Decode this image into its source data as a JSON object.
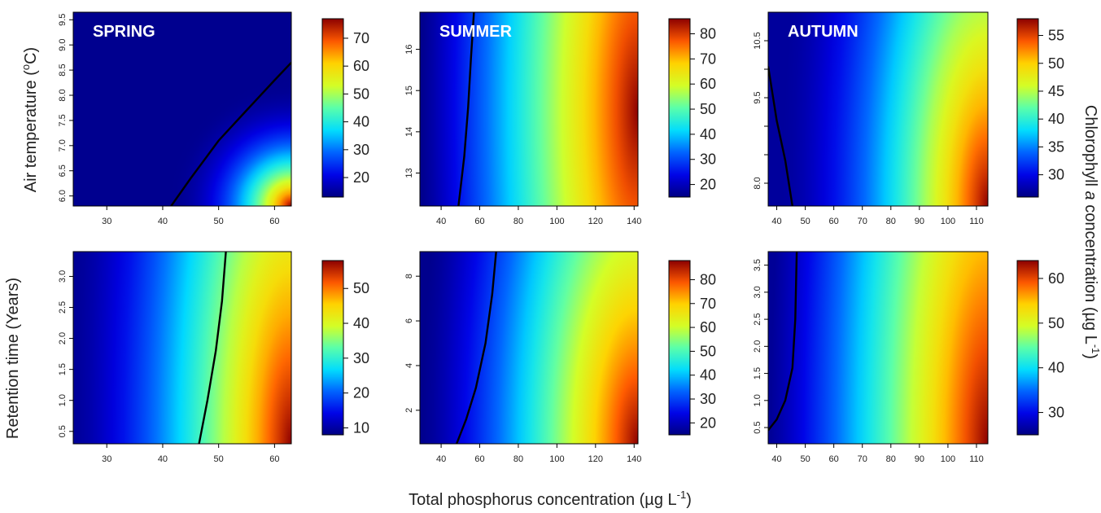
{
  "figure": {
    "xlabel": "Total phosphorus concentration (µg L",
    "xlabel_sup": "-1",
    "xlabel_end": ")",
    "ylabel_top": "Air temperature (",
    "ylabel_top_sup": "o",
    "ylabel_top_end": "C)",
    "ylabel_bottom": "Retention time (Years)",
    "clabel_a": "Chlorophyll ",
    "clabel_italic": "a",
    "clabel_b": " concentration (µg L",
    "clabel_sup": "-1",
    "clabel_end": ")"
  },
  "chart_data": [
    {
      "type": "heatmap",
      "row": 0,
      "col": 0,
      "season": "SPRING",
      "xticks": [
        30,
        40,
        50,
        60
      ],
      "xlim": [
        24,
        63
      ],
      "yticks": [
        6.0,
        6.5,
        7.0,
        7.5,
        8.0,
        8.5,
        9.0,
        9.5
      ],
      "ylim": [
        5.8,
        9.65
      ],
      "ytick_labels": [
        "6.0",
        "6.5",
        "7.0",
        "7.5",
        "8.0",
        "8.5",
        "9.0",
        "9.5"
      ],
      "colorbar": {
        "ticks": [
          20,
          30,
          40,
          50,
          60,
          70
        ],
        "range": [
          13,
          77
        ]
      },
      "surface": {
        "base": 14,
        "low": 13,
        "high": 77,
        "cx": 63,
        "cy": 5.8,
        "rx": 22,
        "ry": 2.5,
        "power": 2.2
      },
      "contour": [
        [
          41.5,
          5.8
        ],
        [
          45,
          6.35
        ],
        [
          50,
          7.1
        ],
        [
          55,
          7.7
        ],
        [
          60,
          8.3
        ],
        [
          63,
          8.65
        ]
      ]
    },
    {
      "type": "heatmap",
      "row": 0,
      "col": 1,
      "season": "SUMMER",
      "xticks": [
        40,
        60,
        80,
        100,
        120,
        140
      ],
      "xlim": [
        29,
        142
      ],
      "yticks": [
        13,
        14,
        15,
        16
      ],
      "ylim": [
        12.2,
        16.9
      ],
      "ytick_labels": [
        "13",
        "14",
        "15",
        "16"
      ],
      "colorbar": {
        "ticks": [
          20,
          30,
          40,
          50,
          60,
          70,
          80
        ],
        "range": [
          15,
          86
        ]
      },
      "surface": {
        "base": 16,
        "low": 15,
        "high": 86,
        "cx": 142,
        "cy": 14.5,
        "rx": 112,
        "ry": 22,
        "power": 1.15
      },
      "contour": [
        [
          49,
          12.2
        ],
        [
          52,
          13.4
        ],
        [
          54,
          14.6
        ],
        [
          55.5,
          15.8
        ],
        [
          57,
          16.9
        ]
      ]
    },
    {
      "type": "heatmap",
      "row": 0,
      "col": 2,
      "season": "AUTUMN",
      "xticks": [
        40,
        50,
        60,
        70,
        80,
        90,
        100,
        110
      ],
      "xlim": [
        37,
        114
      ],
      "yticks": [
        8.0,
        8.5,
        9.0,
        9.5,
        10.0,
        10.5
      ],
      "ylim": [
        7.6,
        11.0
      ],
      "ytick_labels": [
        "8.0",
        "",
        "",
        "9.5",
        "",
        "10.5"
      ],
      "colorbar": {
        "ticks": [
          30,
          35,
          40,
          45,
          50,
          55
        ],
        "range": [
          26,
          58
        ]
      },
      "surface": {
        "base": 27,
        "low": 26,
        "high": 58,
        "cx": 114,
        "cy": 7.6,
        "rx": 72,
        "ry": 12,
        "power": 1.6
      },
      "contour": [
        [
          37,
          10.05
        ],
        [
          40,
          9.1
        ],
        [
          43,
          8.4
        ],
        [
          45.5,
          7.6
        ]
      ]
    },
    {
      "type": "heatmap",
      "row": 1,
      "col": 0,
      "season": "",
      "xticks": [
        30,
        40,
        50,
        60
      ],
      "xlim": [
        24,
        63
      ],
      "yticks": [
        0.5,
        1.0,
        1.5,
        2.0,
        2.5,
        3.0
      ],
      "ylim": [
        0.3,
        3.4
      ],
      "ytick_labels": [
        "0.5",
        "1.0",
        "1.5",
        "2.0",
        "2.5",
        "3.0"
      ],
      "colorbar": {
        "ticks": [
          10,
          20,
          30,
          40,
          50
        ],
        "range": [
          8,
          58
        ]
      },
      "surface": {
        "base": 9,
        "low": 8,
        "high": 58,
        "cx": 63,
        "cy": 0.3,
        "rx": 40,
        "ry": 14,
        "power": 1.5
      },
      "contour": [
        [
          46.5,
          0.3
        ],
        [
          48,
          1.0
        ],
        [
          49.5,
          1.8
        ],
        [
          50.6,
          2.6
        ],
        [
          51.3,
          3.4
        ]
      ]
    },
    {
      "type": "heatmap",
      "row": 1,
      "col": 1,
      "season": "",
      "xticks": [
        40,
        60,
        80,
        100,
        120,
        140
      ],
      "xlim": [
        29,
        142
      ],
      "yticks": [
        2,
        4,
        6,
        8
      ],
      "ylim": [
        0.5,
        9.1
      ],
      "ytick_labels": [
        "2",
        "4",
        "6",
        "8"
      ],
      "colorbar": {
        "ticks": [
          20,
          30,
          40,
          50,
          60,
          70,
          80
        ],
        "range": [
          15,
          88
        ]
      },
      "surface": {
        "base": 16,
        "low": 15,
        "high": 88,
        "cx": 142,
        "cy": 0.5,
        "rx": 112,
        "ry": 30,
        "power": 1.35
      },
      "contour": [
        [
          48,
          0.5
        ],
        [
          53,
          1.6
        ],
        [
          58,
          3.0
        ],
        [
          63,
          5.0
        ],
        [
          66.5,
          7.2
        ],
        [
          68.5,
          9.1
        ]
      ]
    },
    {
      "type": "heatmap",
      "row": 1,
      "col": 2,
      "season": "",
      "xticks": [
        40,
        50,
        60,
        70,
        80,
        90,
        100,
        110
      ],
      "xlim": [
        37,
        114
      ],
      "yticks": [
        0.5,
        1.0,
        1.5,
        2.0,
        2.5,
        3.0,
        3.5
      ],
      "ylim": [
        0.2,
        3.75
      ],
      "ytick_labels": [
        "0.5",
        "1.0",
        "1.5",
        "2.0",
        "2.5",
        "3.0",
        "3.5"
      ],
      "colorbar": {
        "ticks": [
          30,
          40,
          50,
          60
        ],
        "range": [
          25,
          64
        ]
      },
      "surface": {
        "base": 26,
        "low": 25,
        "high": 64,
        "cx": 114,
        "cy": 0.2,
        "rx": 76,
        "ry": 18,
        "power": 1.2
      },
      "contour": [
        [
          37,
          0.45
        ],
        [
          40,
          0.65
        ],
        [
          43,
          1.0
        ],
        [
          45.5,
          1.6
        ],
        [
          46.5,
          2.5
        ],
        [
          47,
          3.75
        ]
      ]
    }
  ]
}
